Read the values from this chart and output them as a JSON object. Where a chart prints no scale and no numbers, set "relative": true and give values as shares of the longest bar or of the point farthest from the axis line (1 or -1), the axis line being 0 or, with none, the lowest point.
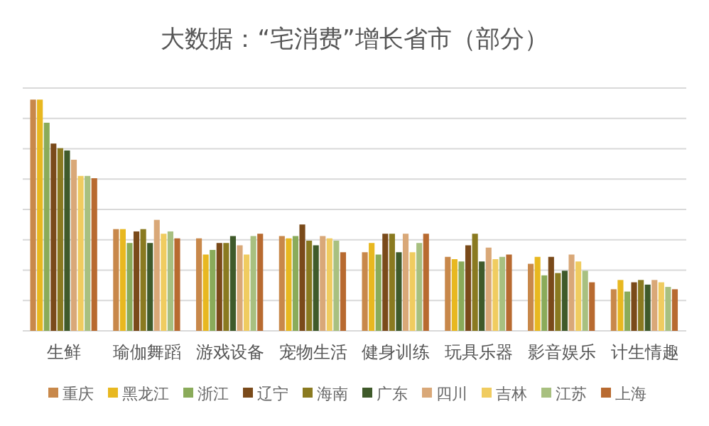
{
  "chart_data": {
    "type": "bar",
    "title": "大数据：“宅消费”增长省市（部分）",
    "relative": true,
    "grid": "y",
    "legend": "bottom",
    "categories": [
      "生鲜",
      "瑜伽舞蹈",
      "游戏设备",
      "宠物生活",
      "健身训练",
      "玩具乐器",
      "影音娱乐",
      "计生情趣"
    ],
    "series": [
      {
        "name": "重庆",
        "color": "#c8884a",
        "values": [
          1,
          0.44,
          0.4,
          0.41,
          0.34,
          0.32,
          0.29,
          0.18
        ]
      },
      {
        "name": "黑龙江",
        "color": "#e8b820",
        "values": [
          1,
          0.44,
          0.33,
          0.4,
          0.38,
          0.31,
          0.32,
          0.22
        ]
      },
      {
        "name": "浙江",
        "color": "#8aab5a",
        "values": [
          0.9,
          0.38,
          0.35,
          0.41,
          0.33,
          0.3,
          0.24,
          0.17
        ]
      },
      {
        "name": "辽宁",
        "color": "#7a4a1a",
        "values": [
          0.81,
          0.43,
          0.38,
          0.46,
          0.42,
          0.37,
          0.32,
          0.21
        ]
      },
      {
        "name": "海南",
        "color": "#8a7a20",
        "values": [
          0.79,
          0.44,
          0.38,
          0.39,
          0.42,
          0.42,
          0.25,
          0.22
        ]
      },
      {
        "name": "广东",
        "color": "#3f5a2a",
        "values": [
          0.78,
          0.38,
          0.41,
          0.37,
          0.34,
          0.3,
          0.26,
          0.2
        ]
      },
      {
        "name": "四川",
        "color": "#d9a878",
        "values": [
          0.74,
          0.48,
          0.37,
          0.41,
          0.42,
          0.36,
          0.33,
          0.22
        ]
      },
      {
        "name": "吉林",
        "color": "#f0cc60",
        "values": [
          0.67,
          0.42,
          0.33,
          0.4,
          0.34,
          0.31,
          0.3,
          0.21
        ]
      },
      {
        "name": "江苏",
        "color": "#a8c080",
        "values": [
          0.67,
          0.43,
          0.41,
          0.39,
          0.38,
          0.32,
          0.26,
          0.19
        ]
      },
      {
        "name": "上海",
        "color": "#b86a30",
        "values": [
          0.66,
          0.4,
          0.42,
          0.34,
          0.42,
          0.33,
          0.21,
          0.18
        ]
      }
    ]
  }
}
